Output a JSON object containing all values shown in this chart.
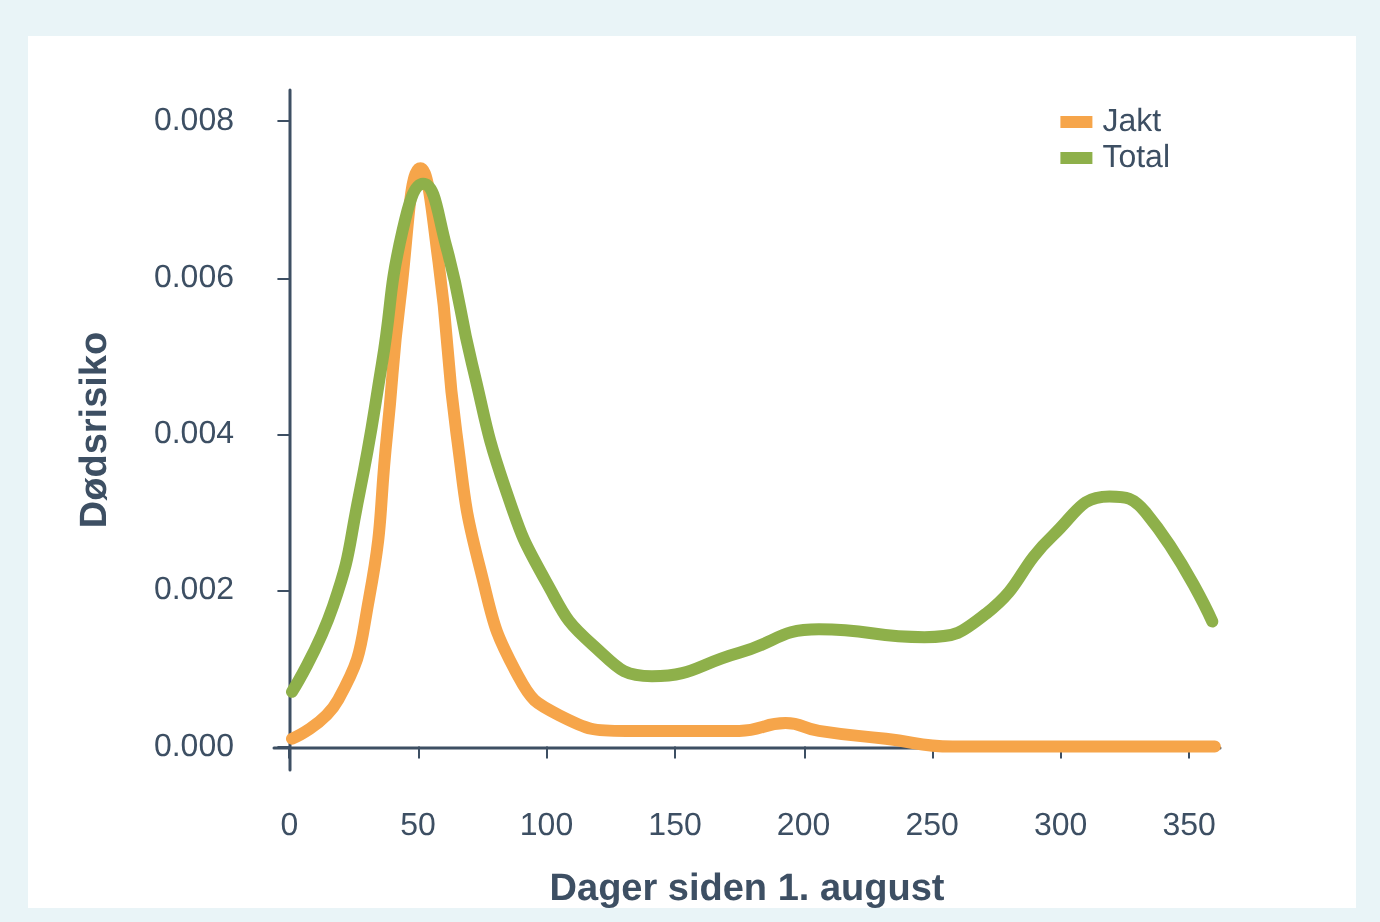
{
  "chart_data": {
    "type": "line",
    "xlabel": "Dager siden 1. august",
    "ylabel": "Dødsrisiko",
    "x": [
      1,
      19,
      31,
      38,
      43,
      51,
      58,
      65,
      74,
      89,
      105,
      131,
      175,
      193,
      206,
      232,
      258,
      300,
      360
    ],
    "xlim": [
      -6,
      362
    ],
    "xticks": [
      0,
      50,
      100,
      150,
      200,
      250,
      300,
      350
    ],
    "ylim": [
      -0.0003,
      0.0084
    ],
    "yticks": [
      {
        "value": 0,
        "label": "0.000"
      },
      {
        "value": 0.002,
        "label": "0.002"
      },
      {
        "value": 0.004,
        "label": "0.004"
      },
      {
        "value": 0.006,
        "label": "0.006"
      },
      {
        "value": 0.008,
        "label": "0.008"
      }
    ],
    "grid": false,
    "legend": "top right",
    "marker": "none",
    "line_style": "solid",
    "series": [
      {
        "name": "Jakt",
        "color": "#f6a54a",
        "values": [
          0.0001,
          0.0006,
          0.0019,
          0.004,
          0.0057,
          0.0074,
          0.0062,
          0.004,
          0.0023,
          0.0009,
          0.0004,
          0.0002,
          0.0002,
          0.0003,
          0.0002,
          0.0001,
          0,
          0,
          0
        ]
      },
      {
        "name": "Total",
        "color": "#8eb04a",
        "x": [
          1,
          17,
          27,
          36,
          44,
          52,
          61,
          71,
          84,
          100,
          118,
          141,
          175,
          206,
          247,
          271,
          297,
          319,
          333,
          359
        ],
        "values": [
          0.0007,
          0.0018,
          0.0032,
          0.0049,
          0.0066,
          0.0072,
          0.0064,
          0.0049,
          0.0033,
          0.0021,
          0.0013,
          0.0009,
          0.0012,
          0.0015,
          0.0014,
          0.0017,
          0.0027,
          0.0032,
          0.003,
          0.0016
        ]
      }
    ]
  }
}
